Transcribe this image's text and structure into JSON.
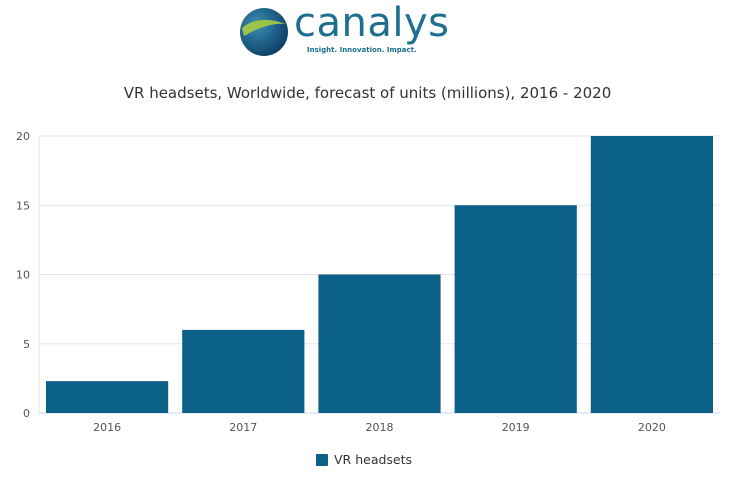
{
  "logo": {
    "text": "canalys",
    "tagline": "Insight. Innovation. Impact."
  },
  "chart_data": {
    "type": "bar",
    "title": "VR headsets, Worldwide, forecast of units (millions), 2016 - 2020",
    "categories": [
      "2016",
      "2017",
      "2018",
      "2019",
      "2020"
    ],
    "series": [
      {
        "name": "VR headsets",
        "values": [
          2.3,
          6,
          10,
          15,
          20
        ],
        "color": "#0b6088"
      }
    ],
    "yticks": [
      "0",
      "5",
      "10",
      "15",
      "20"
    ],
    "ylim": [
      0,
      20
    ],
    "xlabel": "",
    "ylabel": "",
    "grid": true,
    "legend": "bottom-center"
  }
}
